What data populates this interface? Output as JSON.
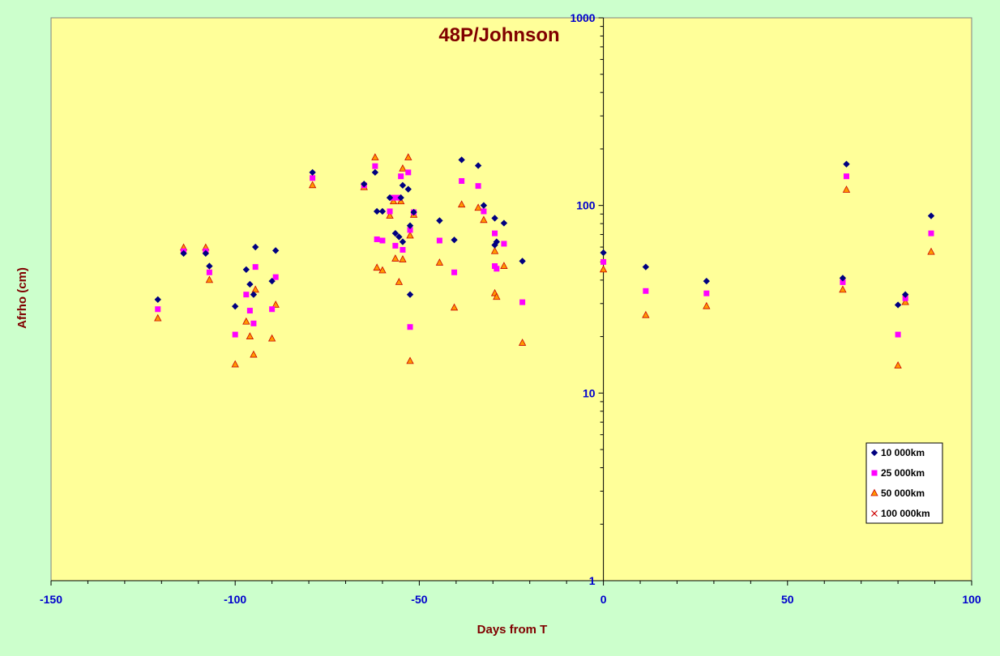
{
  "chart_data": {
    "type": "scatter",
    "title": "48P/Johnson",
    "xlabel": "Days from T",
    "ylabel": "Afrho (cm)",
    "xlim": [
      -150,
      100
    ],
    "ylim": [
      1,
      1000
    ],
    "yscale": "log",
    "x_ticks": [
      "-150",
      "-100",
      "-50",
      "0",
      "50",
      "100"
    ],
    "y_ticks": [
      "1",
      "10",
      "100",
      "1000"
    ],
    "grid": false,
    "legend_position": "bottom-right",
    "colors": {
      "plot_background": "#ffff99",
      "page_background": "#ccffcc",
      "tick_labels": "#0000cc",
      "titles": "#800000"
    },
    "series": [
      {
        "name": "10 000km",
        "marker": "diamond",
        "color": "#000080",
        "points": [
          [
            -121,
            31.5
          ],
          [
            -114,
            55.5
          ],
          [
            -108,
            55.5
          ],
          [
            -107,
            47.5
          ],
          [
            -100,
            29
          ],
          [
            -97,
            45.5
          ],
          [
            -96,
            38
          ],
          [
            -95,
            33.5
          ],
          [
            -94.5,
            60
          ],
          [
            -90,
            39.5
          ],
          [
            -89,
            57.5
          ],
          [
            -79,
            150
          ],
          [
            -65,
            130
          ],
          [
            -62,
            150
          ],
          [
            -61.5,
            93
          ],
          [
            -60,
            93
          ],
          [
            -58,
            110
          ],
          [
            -56.5,
            71
          ],
          [
            -55.5,
            68
          ],
          [
            -55,
            110
          ],
          [
            -54.5,
            128
          ],
          [
            -54.5,
            64
          ],
          [
            -53,
            122
          ],
          [
            -52.5,
            78
          ],
          [
            -52.5,
            33.5
          ],
          [
            -51.5,
            92
          ],
          [
            -44.5,
            83
          ],
          [
            -40.5,
            65.5
          ],
          [
            -38.5,
            175
          ],
          [
            -34,
            163
          ],
          [
            -32.5,
            100
          ],
          [
            -29.5,
            85.5
          ],
          [
            -29.5,
            61.5
          ],
          [
            -29,
            64
          ],
          [
            -27,
            80.5
          ],
          [
            -22,
            50.5
          ],
          [
            0,
            56
          ],
          [
            11.5,
            47
          ],
          [
            28,
            39.5
          ],
          [
            65,
            41
          ],
          [
            66,
            166
          ],
          [
            80,
            29.5
          ],
          [
            82,
            33.5
          ],
          [
            89,
            88
          ]
        ]
      },
      {
        "name": "25 000km",
        "marker": "square",
        "color": "#ff00ff",
        "points": [
          [
            -121,
            28
          ],
          [
            -114,
            57
          ],
          [
            -108,
            57
          ],
          [
            -107,
            44
          ],
          [
            -100,
            20.5
          ],
          [
            -97,
            33.5
          ],
          [
            -96,
            27.5
          ],
          [
            -95,
            23.5
          ],
          [
            -94.5,
            47
          ],
          [
            -90,
            28
          ],
          [
            -89,
            41.5
          ],
          [
            -79,
            140
          ],
          [
            -65,
            128
          ],
          [
            -62,
            162
          ],
          [
            -61.5,
            66
          ],
          [
            -60,
            65
          ],
          [
            -58,
            93
          ],
          [
            -57,
            110
          ],
          [
            -56.5,
            61
          ],
          [
            -55.5,
            110
          ],
          [
            -55,
            143
          ],
          [
            -54.5,
            58
          ],
          [
            -53,
            150
          ],
          [
            -52.5,
            74
          ],
          [
            -52.5,
            22.5
          ],
          [
            -51.5,
            92
          ],
          [
            -44.5,
            65
          ],
          [
            -40.5,
            44
          ],
          [
            -38.5,
            135
          ],
          [
            -34,
            127
          ],
          [
            -32.5,
            93
          ],
          [
            -29.5,
            71
          ],
          [
            -29.5,
            47.5
          ],
          [
            -29,
            46
          ],
          [
            -27,
            62.5
          ],
          [
            -22,
            30.5
          ],
          [
            0,
            50
          ],
          [
            11.5,
            35
          ],
          [
            28,
            34
          ],
          [
            65,
            39
          ],
          [
            66,
            143
          ],
          [
            80,
            20.5
          ],
          [
            82,
            32
          ],
          [
            89,
            71
          ]
        ]
      },
      {
        "name": "50 000km",
        "marker": "triangle",
        "color": "#ff9900",
        "points": [
          [
            -121,
            25
          ],
          [
            -114,
            59.5
          ],
          [
            -108,
            59.5
          ],
          [
            -107,
            40
          ],
          [
            -100,
            14.2
          ],
          [
            -97,
            24
          ],
          [
            -96,
            20
          ],
          [
            -95,
            16
          ],
          [
            -94.5,
            35.5
          ],
          [
            -90,
            19.5
          ],
          [
            -89,
            29.5
          ],
          [
            -79,
            128
          ],
          [
            -65,
            125
          ],
          [
            -62,
            180
          ],
          [
            -61.5,
            46.5
          ],
          [
            -60,
            45
          ],
          [
            -58,
            88
          ],
          [
            -57,
            105
          ],
          [
            -56.5,
            52
          ],
          [
            -55.5,
            39
          ],
          [
            -55,
            105
          ],
          [
            -54.5,
            157
          ],
          [
            -54.5,
            51.5
          ],
          [
            -53,
            180
          ],
          [
            -52.5,
            69
          ],
          [
            -52.5,
            14.8
          ],
          [
            -51.5,
            89
          ],
          [
            -44.5,
            49.5
          ],
          [
            -40.5,
            28.5
          ],
          [
            -38.5,
            101
          ],
          [
            -34,
            97
          ],
          [
            -32.5,
            83.5
          ],
          [
            -29.5,
            57
          ],
          [
            -29.5,
            34
          ],
          [
            -29,
            32.5
          ],
          [
            -27,
            47.5
          ],
          [
            -22,
            18.5
          ],
          [
            0,
            45.5
          ],
          [
            11.5,
            26
          ],
          [
            28,
            29
          ],
          [
            65,
            35.5
          ],
          [
            66,
            121
          ],
          [
            80,
            14
          ],
          [
            82,
            30.5
          ],
          [
            89,
            56.5
          ]
        ]
      },
      {
        "name": "100 000km",
        "marker": "x",
        "color": "#cc0000",
        "points": []
      }
    ]
  }
}
